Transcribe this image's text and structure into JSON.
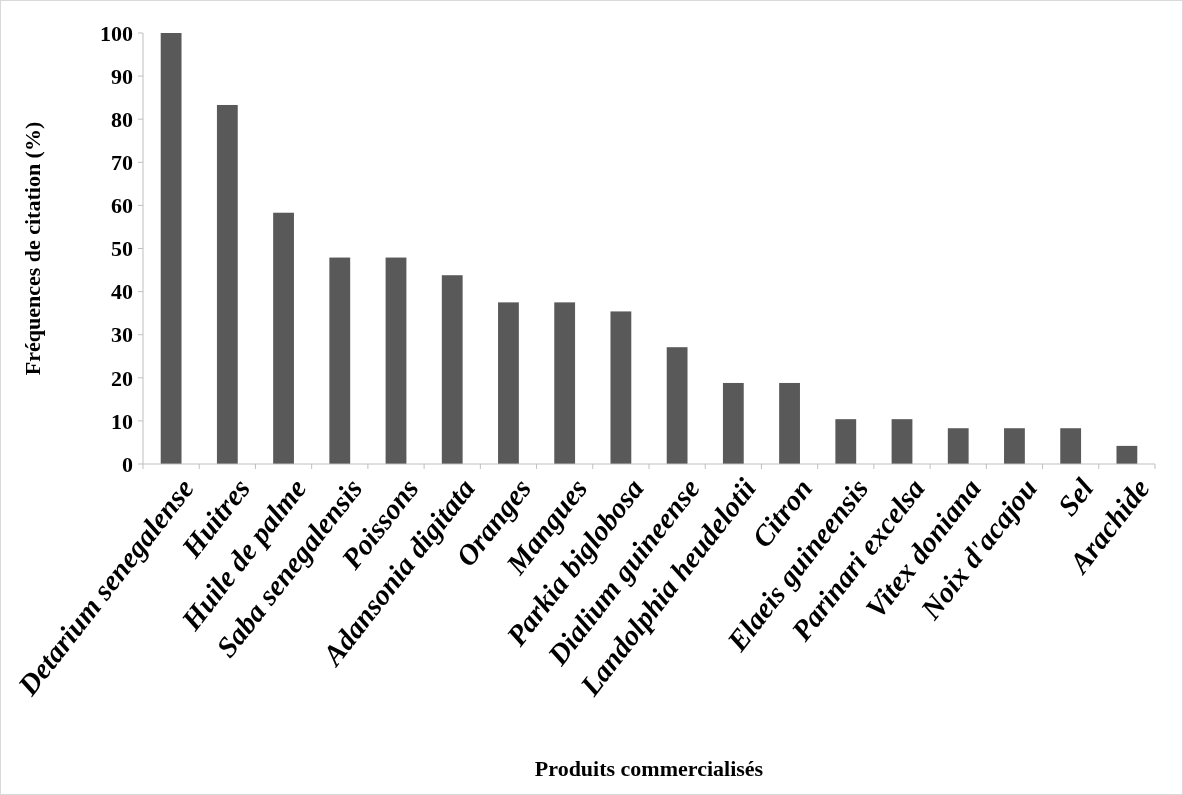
{
  "chart_data": {
    "type": "bar",
    "xlabel": "Produits commercialisés",
    "ylabel": "Fréquences de citation (%)",
    "categories": [
      "Detarium senegalense",
      "Huitres",
      "Huile de palme",
      "Saba senegalensis",
      "Poissons",
      "Adansonia digitata",
      "Oranges",
      "Mangues",
      "Parkia biglobosa",
      "Dialium guineense",
      "Landolphia heudelotii",
      "Citron",
      "Elaeis guineensis",
      "Parinari excelsa",
      "Vitex doniana",
      "Noix d'acajou",
      "Sel",
      "Arachide"
    ],
    "values": [
      100,
      83.3,
      58.3,
      47.9,
      47.9,
      43.8,
      37.5,
      37.5,
      35.4,
      27.1,
      18.8,
      18.8,
      10.4,
      10.4,
      8.3,
      8.3,
      8.3,
      4.2
    ],
    "color": "#595959",
    "ylim": [
      0,
      100
    ],
    "yticks": [
      0,
      10,
      20,
      30,
      40,
      50,
      60,
      70,
      80,
      90,
      100
    ],
    "grid": false
  }
}
